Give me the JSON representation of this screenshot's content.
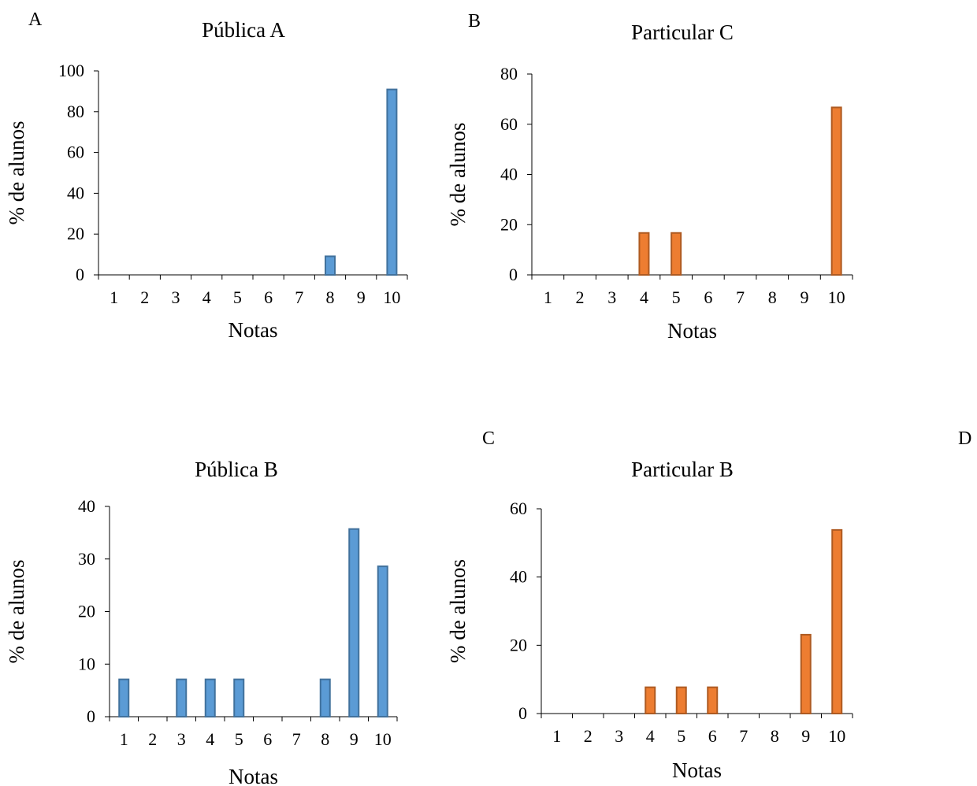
{
  "panel_labels": [
    "A",
    "B",
    "C",
    "D"
  ],
  "chart_data": [
    {
      "type": "bar",
      "title": "Pública A",
      "xlabel": "Notas",
      "ylabel": "% de alunos",
      "categories": [
        "1",
        "2",
        "3",
        "4",
        "5",
        "6",
        "7",
        "8",
        "9",
        "10"
      ],
      "values": [
        0,
        0,
        0,
        0,
        0,
        0,
        0,
        9.1,
        0,
        90.9
      ],
      "ylim": [
        0,
        100
      ],
      "yticks": [
        0,
        20,
        40,
        60,
        80,
        100
      ],
      "color": "#5b9bd5",
      "edge": "#41719c"
    },
    {
      "type": "bar",
      "title": "Particular C",
      "xlabel": "Notas",
      "ylabel": "% de alunos",
      "categories": [
        "1",
        "2",
        "3",
        "4",
        "5",
        "6",
        "7",
        "8",
        "9",
        "10"
      ],
      "values": [
        0,
        0,
        0,
        16.7,
        16.7,
        0,
        0,
        0,
        0,
        66.7
      ],
      "ylim": [
        0,
        80
      ],
      "yticks": [
        0,
        20,
        40,
        60,
        80
      ],
      "color": "#ed7d31",
      "edge": "#ae5a21"
    },
    {
      "type": "bar",
      "title": "Pública B",
      "xlabel": "Notas",
      "ylabel": "% de alunos",
      "categories": [
        "1",
        "2",
        "3",
        "4",
        "5",
        "6",
        "7",
        "8",
        "9",
        "10"
      ],
      "values": [
        7.1,
        0,
        7.1,
        7.1,
        7.1,
        0,
        0,
        7.1,
        35.7,
        28.6
      ],
      "ylim": [
        0,
        40
      ],
      "yticks": [
        0,
        10,
        20,
        30,
        40
      ],
      "color": "#5b9bd5",
      "edge": "#41719c"
    },
    {
      "type": "bar",
      "title": "Particular B",
      "xlabel": "Notas",
      "ylabel": "% de alunos",
      "categories": [
        "1",
        "2",
        "3",
        "4",
        "5",
        "6",
        "7",
        "8",
        "9",
        "10"
      ],
      "values": [
        0,
        0,
        0,
        7.7,
        7.7,
        7.7,
        0,
        0,
        23.1,
        53.8
      ],
      "ylim": [
        0,
        60
      ],
      "yticks": [
        0,
        20,
        40,
        60
      ],
      "color": "#ed7d31",
      "edge": "#ae5a21"
    }
  ]
}
